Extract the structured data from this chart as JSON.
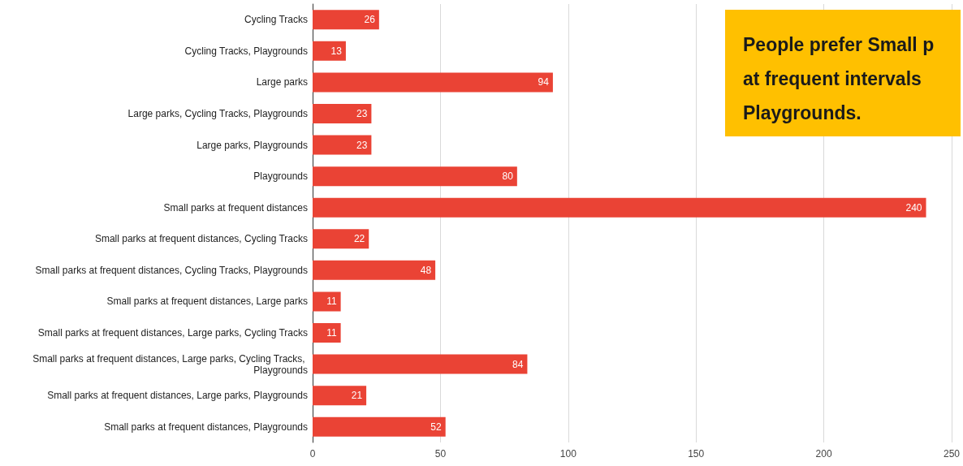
{
  "chart_data": {
    "type": "bar",
    "orientation": "horizontal",
    "categories": [
      "Cycling Tracks",
      "Cycling Tracks, Playgrounds",
      "Large parks",
      "Large parks, Cycling Tracks, Playgrounds",
      "Large parks, Playgrounds",
      "Playgrounds",
      "Small parks at frequent distances",
      "Small parks at frequent distances, Cycling Tracks",
      "Small parks at frequent distances, Cycling Tracks, Playgrounds",
      "Small parks at frequent distances, Large parks",
      "Small parks at frequent distances, Large parks, Cycling Tracks",
      "Small parks at frequent distances, Large parks, Cycling Tracks, Playgrounds",
      "Small parks at frequent distances, Large parks, Playgrounds",
      "Small parks at frequent distances, Playgrounds"
    ],
    "values": [
      26,
      13,
      94,
      23,
      23,
      80,
      240,
      22,
      48,
      11,
      11,
      84,
      21,
      52
    ],
    "color": "#ea4335",
    "xlim": [
      0,
      250
    ],
    "xticks": [
      0,
      50,
      100,
      150,
      200,
      250
    ],
    "grid": "x",
    "data_labels": true,
    "annotations": [
      "People prefer Small p\nat frequent intervals\nPlaygrounds."
    ]
  }
}
